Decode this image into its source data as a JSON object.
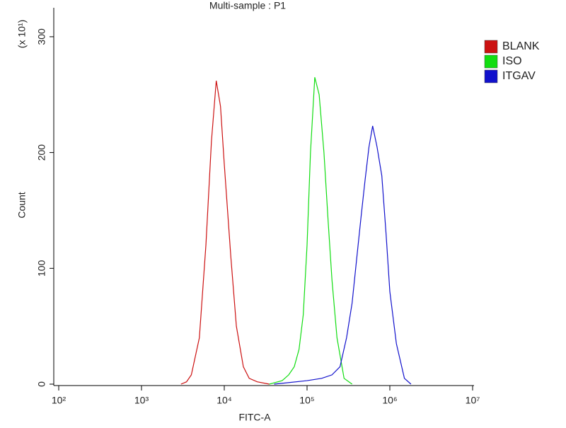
{
  "chart_data": {
    "type": "line",
    "title": "Multi-sample : P1",
    "x_label": "FITC-A",
    "y_label": "Count",
    "y_multiplier": "(x 10¹)",
    "xlog": true,
    "xlim": [
      100,
      10000000
    ],
    "xticks": [
      {
        "value": 100,
        "label": "10²"
      },
      {
        "value": 1000,
        "label": "10³"
      },
      {
        "value": 10000,
        "label": "10⁴"
      },
      {
        "value": 100000,
        "label": "10⁵"
      },
      {
        "value": 1000000,
        "label": "10⁶"
      },
      {
        "value": 10000000,
        "label": "10⁷"
      }
    ],
    "ylim": [
      0,
      325
    ],
    "yticks": [
      0,
      100,
      200,
      300
    ],
    "legend": "right",
    "series": [
      {
        "name": "BLANK",
        "color": "#cc1111",
        "x": [
          3000,
          3500,
          4000,
          5000,
          6000,
          7000,
          8000,
          9000,
          10000,
          12000,
          14000,
          17000,
          20000,
          25000,
          35000
        ],
        "values": [
          0,
          2,
          8,
          40,
          120,
          210,
          262,
          240,
          190,
          110,
          50,
          15,
          5,
          2,
          0
        ]
      },
      {
        "name": "ISO",
        "color": "#11dd11",
        "x": [
          35000,
          50000,
          60000,
          70000,
          80000,
          90000,
          100000,
          110000,
          124000,
          140000,
          160000,
          180000,
          200000,
          230000,
          280000,
          350000
        ],
        "values": [
          0,
          3,
          8,
          15,
          30,
          60,
          120,
          200,
          265,
          250,
          200,
          140,
          90,
          40,
          5,
          0
        ]
      },
      {
        "name": "ITGAV",
        "color": "#1111cc",
        "x": [
          40000,
          100000,
          150000,
          200000,
          250000,
          300000,
          350000,
          400000,
          450000,
          500000,
          560000,
          620000,
          700000,
          800000,
          900000,
          1000000,
          1200000,
          1500000,
          1800000
        ],
        "values": [
          0,
          3,
          5,
          8,
          15,
          40,
          70,
          110,
          145,
          175,
          205,
          223,
          205,
          180,
          130,
          80,
          35,
          5,
          0
        ]
      }
    ]
  }
}
